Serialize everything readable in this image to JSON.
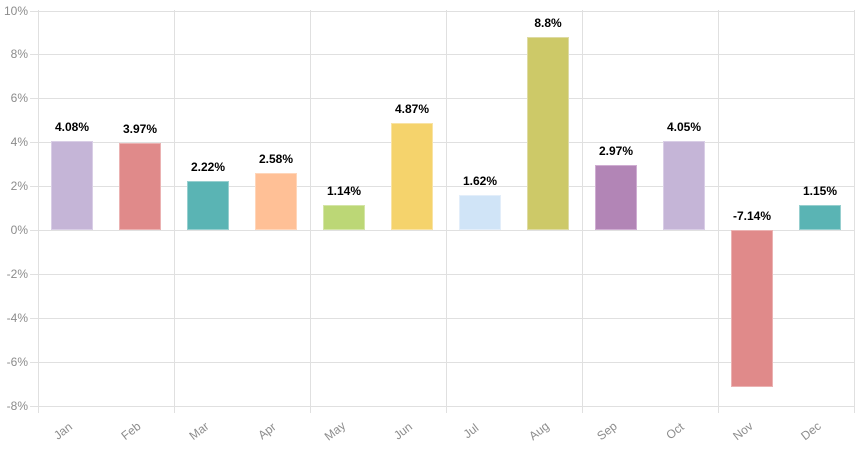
{
  "chart": {
    "background_color": "#ffffff",
    "grid_color": "#e0e0e0",
    "axis_label_color": "#8c8c8c",
    "value_label_color": "#000000"
  },
  "chart_data": {
    "type": "bar",
    "title": "",
    "xlabel": "",
    "ylabel": "",
    "categories": [
      "Jan",
      "Feb",
      "Mar",
      "Apr",
      "May",
      "Jun",
      "Jul",
      "Aug",
      "Sep",
      "Oct",
      "Nov",
      "Dec"
    ],
    "values": [
      4.08,
      3.97,
      2.22,
      2.58,
      1.14,
      4.87,
      1.62,
      8.8,
      2.97,
      4.05,
      -7.14,
      1.15
    ],
    "value_labels": [
      "4.08%",
      "3.97%",
      "2.22%",
      "2.58%",
      "1.14%",
      "4.87%",
      "1.62%",
      "8.8%",
      "2.97%",
      "4.05%",
      "-7.14%",
      "1.15%"
    ],
    "bar_colors": [
      "#c5b5d7",
      "#e08a8a",
      "#5ab4b4",
      "#ffc096",
      "#bcd776",
      "#f5d36c",
      "#d0e4f7",
      "#cdc968",
      "#b285b6",
      "#c5b5d7",
      "#e08a8a",
      "#5ab4b4"
    ],
    "bar_border_colors": [
      "#d9cee6",
      "#ebb2b2",
      "#97cfcf",
      "#ffd6ba",
      "#d4e5a7",
      "#f9e3a4",
      "#e3eefa",
      "#dedba3",
      "#cfadd2",
      "#d9cee6",
      "#ebb2b2",
      "#97cfcf"
    ],
    "ylim": [
      -8,
      10
    ],
    "y_tick_step": 2,
    "y_tick_labels": [
      "10%",
      "8%",
      "6%",
      "4%",
      "2%",
      "0%",
      "-2%",
      "-4%",
      "-6%",
      "-8%"
    ],
    "grid": "on",
    "legend": "none"
  }
}
